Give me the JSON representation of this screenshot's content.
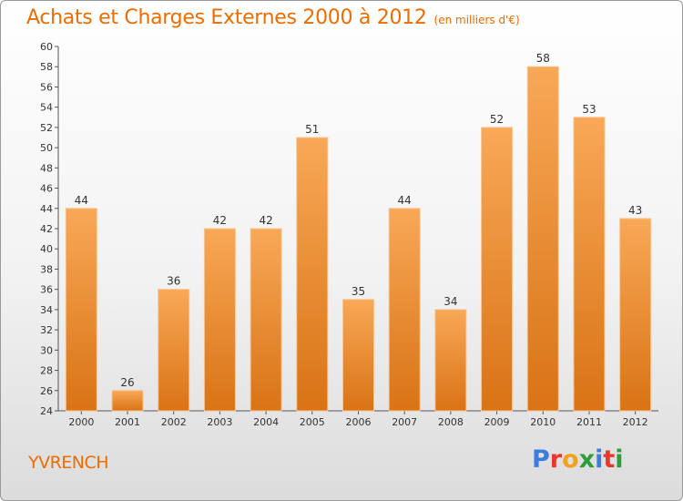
{
  "header": {
    "title": "Achats et Charges Externes 2000 à 2012",
    "unit": "(en milliers d'€)"
  },
  "place": "YVRENCH",
  "logo": {
    "letters": [
      "P",
      "r",
      "o",
      "x",
      "i",
      "t",
      "i"
    ],
    "colors": [
      "#3b7ddd",
      "#e8372c",
      "#f3a01c",
      "#2e9e3b",
      "#3b7ddd",
      "#e8372c",
      "#2e9e3b"
    ]
  },
  "colors": {
    "bar_top": "#f8a857",
    "bar_bottom": "#d97315",
    "accent": "#ef6c00"
  },
  "chart_data": {
    "type": "bar",
    "title": "Achats et Charges Externes 2000 à 2012",
    "subtitle": "(en milliers d'€)",
    "categories": [
      "2000",
      "2001",
      "2002",
      "2003",
      "2004",
      "2005",
      "2006",
      "2007",
      "2008",
      "2009",
      "2010",
      "2011",
      "2012"
    ],
    "values": [
      44,
      26,
      36,
      42,
      42,
      51,
      35,
      44,
      34,
      52,
      58,
      53,
      43
    ],
    "ylim": [
      24,
      60
    ],
    "yticks": [
      24,
      26,
      28,
      30,
      32,
      34,
      36,
      38,
      40,
      42,
      44,
      46,
      48,
      50,
      52,
      54,
      56,
      58,
      60
    ],
    "grid": false,
    "data_labels": true
  }
}
